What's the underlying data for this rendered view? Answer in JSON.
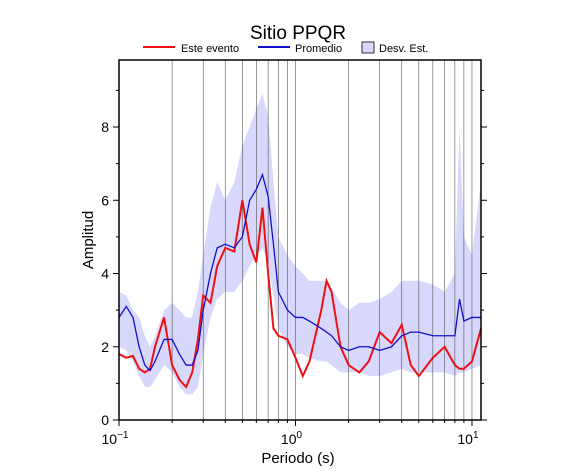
{
  "chart_data": {
    "type": "line",
    "title": "Sitio PPQR",
    "xlabel": "Periodo (s)",
    "ylabel": "Amplitud",
    "xscale": "log",
    "grid": true,
    "x": [
      0.1,
      0.11,
      0.12,
      0.13,
      0.14,
      0.15,
      0.16,
      0.18,
      0.2,
      0.22,
      0.24,
      0.26,
      0.28,
      0.3,
      0.33,
      0.36,
      0.4,
      0.45,
      0.5,
      0.55,
      0.6,
      0.65,
      0.7,
      0.75,
      0.8,
      0.9,
      1.0,
      1.1,
      1.2,
      1.4,
      1.5,
      1.6,
      1.8,
      2.0,
      2.3,
      2.6,
      3.0,
      3.5,
      4.0,
      4.5,
      5.0,
      6.0,
      7.0,
      8.0,
      8.5,
      9.0,
      10.0,
      11.25
    ],
    "series": [
      {
        "name": "Este evento",
        "color": "#ee1111",
        "values": [
          1.8,
          1.7,
          1.75,
          1.4,
          1.3,
          1.4,
          2.0,
          2.8,
          1.5,
          1.1,
          0.9,
          1.3,
          2.2,
          3.4,
          3.2,
          4.2,
          4.7,
          4.6,
          6.0,
          4.8,
          4.3,
          5.8,
          4.0,
          2.5,
          2.3,
          2.2,
          1.7,
          1.2,
          1.6,
          3.0,
          3.8,
          3.5,
          2.0,
          1.5,
          1.3,
          1.6,
          2.4,
          2.1,
          2.6,
          1.5,
          1.2,
          1.7,
          2.0,
          1.5,
          1.4,
          1.4,
          1.6,
          2.5
        ]
      },
      {
        "name": "Promedio",
        "color": "#1111cc",
        "values": [
          2.8,
          3.1,
          2.8,
          2.0,
          1.5,
          1.35,
          1.6,
          2.2,
          2.2,
          1.8,
          1.5,
          1.5,
          1.9,
          3.0,
          4.0,
          4.7,
          4.8,
          4.7,
          5.0,
          6.0,
          6.3,
          6.7,
          6.1,
          4.8,
          3.5,
          3.0,
          2.8,
          2.8,
          2.7,
          2.5,
          2.4,
          2.3,
          2.0,
          1.9,
          2.0,
          2.0,
          1.9,
          2.0,
          2.3,
          2.4,
          2.4,
          2.3,
          2.3,
          2.3,
          3.3,
          2.7,
          2.8,
          2.8
        ]
      },
      {
        "name": "Desv. Est.",
        "color": "#d8d8fc",
        "upper": [
          3.5,
          3.4,
          3.0,
          2.8,
          2.3,
          2.0,
          2.3,
          3.0,
          3.2,
          3.0,
          2.8,
          2.8,
          3.5,
          4.5,
          5.8,
          6.5,
          6.0,
          6.5,
          7.5,
          8.0,
          8.5,
          8.9,
          8.3,
          6.5,
          5.0,
          4.5,
          4.2,
          4.0,
          3.8,
          3.8,
          3.8,
          3.6,
          3.2,
          3.0,
          3.2,
          3.2,
          3.3,
          3.5,
          3.8,
          3.8,
          3.8,
          3.7,
          3.5,
          4.0,
          8.0,
          5.0,
          4.5,
          6.5
        ],
        "lower": [
          2.0,
          1.9,
          1.6,
          1.2,
          0.9,
          0.9,
          1.1,
          1.5,
          1.3,
          0.9,
          0.7,
          0.7,
          0.9,
          1.8,
          2.8,
          3.3,
          3.5,
          3.5,
          3.8,
          4.2,
          4.5,
          4.7,
          4.3,
          3.4,
          2.5,
          2.0,
          1.8,
          1.8,
          1.7,
          1.6,
          1.6,
          1.5,
          1.3,
          1.3,
          1.3,
          1.2,
          1.2,
          1.3,
          1.4,
          1.3,
          1.3,
          1.3,
          1.3,
          1.2,
          1.3,
          1.3,
          1.4,
          1.5
        ]
      }
    ],
    "xlim": [
      0.1,
      11.25
    ],
    "ylim": [
      0,
      9.83
    ],
    "xticks": [
      {
        "value": 0.1,
        "label": "10",
        "exponent": "−1"
      },
      {
        "value": 1,
        "label": "10",
        "exponent": "0"
      },
      {
        "value": 10,
        "label": "10",
        "exponent": "1"
      }
    ],
    "xminorticks": [
      0.2,
      0.3,
      0.4,
      0.5,
      0.6,
      0.7,
      0.8,
      0.9,
      2,
      3,
      4,
      5,
      6,
      7,
      8,
      9
    ],
    "yticks": [
      0,
      2,
      4,
      6,
      8
    ],
    "yminorticks": [
      1,
      3,
      5,
      7,
      9
    ]
  }
}
